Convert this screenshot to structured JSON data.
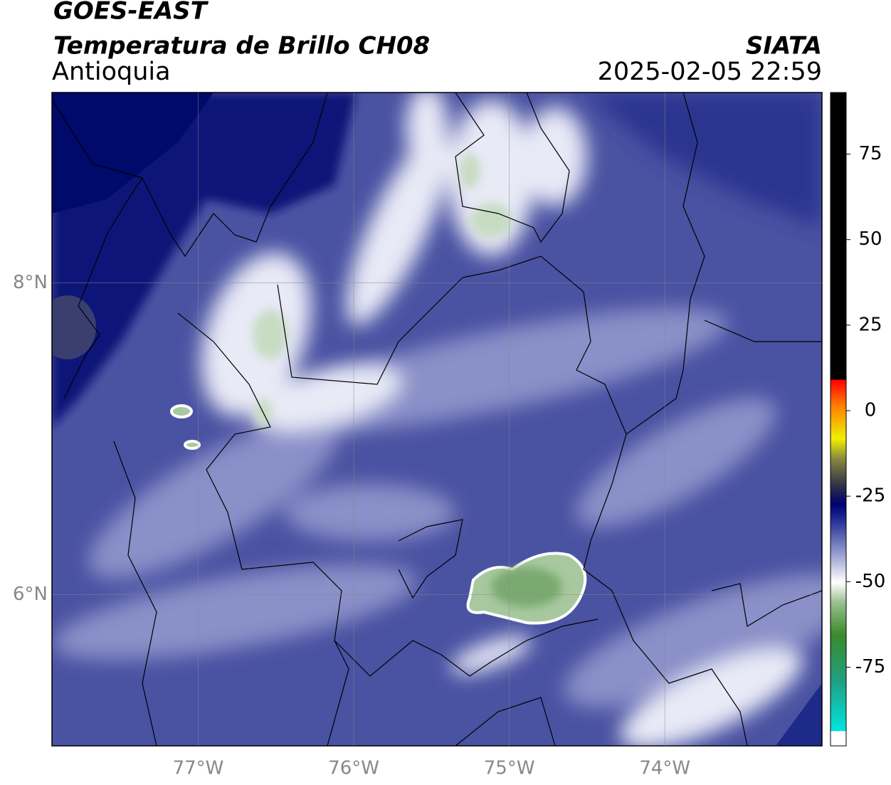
{
  "chart_data": {
    "type": "map",
    "title": "GOES-EAST",
    "subtitle": "Temperatura de Brillo CH08",
    "region": "Antioquia",
    "source": "SIATA",
    "datetime": "2025-02-05 22:59",
    "xlim": [
      -77.94,
      -72.99
    ],
    "ylim": [
      5.03,
      9.22
    ],
    "xticks": [
      {
        "value": -77,
        "label": "77°W"
      },
      {
        "value": -76,
        "label": "76°W"
      },
      {
        "value": -75,
        "label": "75°W"
      },
      {
        "value": -74,
        "label": "74°W"
      }
    ],
    "yticks": [
      {
        "value": 6,
        "label": "6°N"
      },
      {
        "value": 8,
        "label": "8°N"
      }
    ],
    "grid": true,
    "colorbar": {
      "lim": [
        -98,
        93
      ],
      "ticks": [
        75,
        50,
        25,
        0,
        -25,
        -50,
        -75
      ]
    }
  }
}
